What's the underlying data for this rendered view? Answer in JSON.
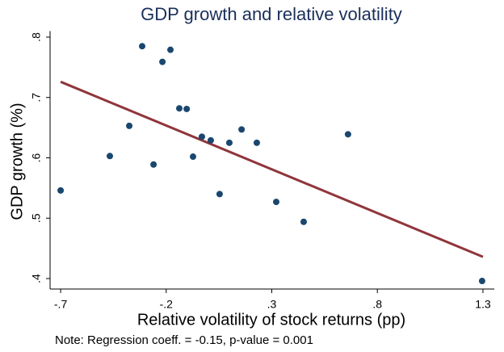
{
  "chart_data": {
    "type": "scatter",
    "title": "GDP growth and relative volatility",
    "xlabel": "Relative volatility of stock returns (pp)",
    "ylabel": "GDP growth (%)",
    "note": "Note: Regression coeff. = -0.15, p-value = 0.001",
    "color": "#1a476f",
    "x": [
      -0.7,
      -0.467,
      -0.375,
      -0.314,
      -0.26,
      -0.218,
      -0.18,
      -0.138,
      -0.103,
      -0.073,
      -0.031,
      0.011,
      0.053,
      0.099,
      0.157,
      0.229,
      0.321,
      0.451,
      0.661,
      1.296
    ],
    "y": [
      0.546,
      0.603,
      0.653,
      0.785,
      0.589,
      0.759,
      0.779,
      0.682,
      0.681,
      0.602,
      0.635,
      0.629,
      0.54,
      0.625,
      0.647,
      0.625,
      0.527,
      0.494,
      0.639,
      0.396
    ],
    "fit": {
      "color": "#90353b",
      "x": [
        -0.7,
        1.3
      ],
      "y": [
        0.726,
        0.436
      ]
    },
    "xlim": [
      -0.75,
      1.35
    ],
    "ylim": [
      0.38,
      0.81
    ],
    "xticks": [
      {
        "value": -0.7,
        "label": "-.7"
      },
      {
        "value": -0.2,
        "label": "-.2"
      },
      {
        "value": 0.3,
        "label": ".3"
      },
      {
        "value": 0.8,
        "label": ".8"
      },
      1.3
    ],
    "yticks": [
      {
        "value": 0.4,
        "label": ".4"
      },
      {
        "value": 0.5,
        "label": ".5"
      },
      {
        "value": 0.6,
        "label": ".6"
      },
      {
        "value": 0.7,
        "label": ".7"
      },
      {
        "value": 0.8,
        "label": ".8"
      }
    ],
    "grid": false
  }
}
